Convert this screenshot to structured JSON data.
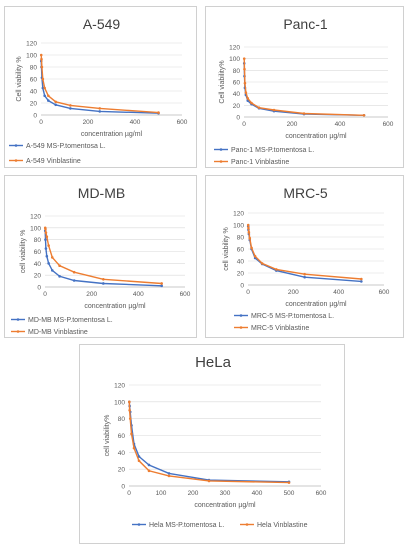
{
  "colors": {
    "ms": "#4472c4",
    "vinblastine": "#ed7d31",
    "grid": "#d9d9d9",
    "axis": "#bfbfbf",
    "text": "#595959"
  },
  "chart_data": [
    {
      "type": "line",
      "title": "A-549",
      "xlabel": "concentration µg/ml",
      "ylabel": "Cell viability %",
      "xlim": [
        0,
        600
      ],
      "xticks": [
        0,
        200,
        400,
        600
      ],
      "ylim": [
        0,
        120
      ],
      "yticks": [
        0,
        20,
        40,
        60,
        80,
        100,
        120
      ],
      "grid": true,
      "legend": "bottom-left",
      "series": [
        {
          "name": "A-549  MS-P.tomentosa L.",
          "color": "#4472c4",
          "x": [
            0.98,
            1.95,
            3.9,
            7.8,
            15.6,
            31.25,
            62.5,
            125,
            250,
            500
          ],
          "y": [
            90,
            80,
            62,
            45,
            32,
            24,
            17,
            11,
            6,
            3
          ]
        },
        {
          "name": "A-549  Vinblastine",
          "color": "#ed7d31",
          "x": [
            0.98,
            1.95,
            3.9,
            7.8,
            15.6,
            31.25,
            62.5,
            125,
            250,
            500
          ],
          "y": [
            100,
            93,
            80,
            60,
            45,
            32,
            22,
            16,
            11,
            4
          ]
        }
      ]
    },
    {
      "type": "line",
      "title": "Panc-1",
      "xlabel": "concentration µg/ml",
      "ylabel": "Cell viability%",
      "xlim": [
        0,
        600
      ],
      "xticks": [
        0,
        200,
        400,
        600
      ],
      "ylim": [
        0,
        120
      ],
      "yticks": [
        0,
        20,
        40,
        60,
        80,
        100,
        120
      ],
      "grid": true,
      "legend": "bottom-left",
      "series": [
        {
          "name": "Panc-1 MS-P.tomentosa L.",
          "color": "#4472c4",
          "x": [
            0.98,
            1.95,
            3.9,
            7.8,
            15.6,
            31.25,
            62.5,
            125,
            250,
            500
          ],
          "y": [
            92,
            70,
            50,
            38,
            28,
            22,
            15,
            10,
            5,
            3
          ]
        },
        {
          "name": "Panc-1 Vinblastine",
          "color": "#ed7d31",
          "x": [
            0.98,
            1.95,
            3.9,
            7.8,
            15.6,
            31.25,
            62.5,
            125,
            250,
            500
          ],
          "y": [
            100,
            82,
            58,
            42,
            32,
            24,
            16,
            12,
            6,
            3
          ]
        }
      ]
    },
    {
      "type": "line",
      "title": "MD-MB",
      "xlabel": "concentration µg/ml",
      "ylabel": "cell viability %",
      "xlim": [
        0,
        600
      ],
      "xticks": [
        0,
        200,
        400,
        600
      ],
      "ylim": [
        0,
        120
      ],
      "yticks": [
        0,
        20,
        40,
        60,
        80,
        100,
        120
      ],
      "grid": true,
      "legend": "bottom-left",
      "series": [
        {
          "name": "MD-MB MS-P.tomentosa L.",
          "color": "#4472c4",
          "x": [
            0.98,
            1.95,
            3.9,
            7.8,
            15.6,
            31.25,
            62.5,
            125,
            250,
            500
          ],
          "y": [
            95,
            80,
            65,
            52,
            40,
            28,
            18,
            11,
            6,
            2
          ]
        },
        {
          "name": "MD-MB Vinblastine",
          "color": "#ed7d31",
          "x": [
            0.98,
            1.95,
            3.9,
            7.8,
            15.6,
            31.25,
            62.5,
            125,
            250,
            500
          ],
          "y": [
            100,
            98,
            92,
            85,
            70,
            50,
            36,
            25,
            13,
            6
          ]
        }
      ]
    },
    {
      "type": "line",
      "title": "MRC-5",
      "xlabel": "concentration µg/ml",
      "ylabel": "cell viability %",
      "xlim": [
        0,
        600
      ],
      "xticks": [
        0,
        200,
        400,
        600
      ],
      "ylim": [
        0,
        120
      ],
      "yticks": [
        0,
        20,
        40,
        60,
        80,
        100,
        120
      ],
      "grid": true,
      "legend": "bottom-left",
      "series": [
        {
          "name": "MRC-5 MS-P.tomentosa L.",
          "color": "#4472c4",
          "x": [
            0.98,
            1.95,
            3.9,
            7.8,
            15.6,
            31.25,
            62.5,
            125,
            250,
            500
          ],
          "y": [
            98,
            92,
            85,
            75,
            60,
            45,
            35,
            24,
            13,
            6
          ]
        },
        {
          "name": "MRC-5 Vinblastine",
          "color": "#ed7d31",
          "x": [
            0.98,
            1.95,
            3.9,
            7.8,
            15.6,
            31.25,
            62.5,
            125,
            250,
            500
          ],
          "y": [
            100,
            95,
            88,
            78,
            62,
            48,
            36,
            26,
            18,
            10
          ]
        }
      ]
    },
    {
      "type": "line",
      "title": "HeLa",
      "xlabel": "concentration µg/ml",
      "ylabel": "cell viability%",
      "xlim": [
        0,
        600
      ],
      "xticks": [
        0,
        100,
        200,
        300,
        400,
        500,
        600
      ],
      "ylim": [
        0,
        120
      ],
      "yticks": [
        0,
        20,
        40,
        60,
        80,
        100,
        120
      ],
      "grid": true,
      "legend": "bottom",
      "series": [
        {
          "name": "Hela MS-P.tomentosa L.",
          "color": "#4472c4",
          "x": [
            0.98,
            1.95,
            3.9,
            7.8,
            15.6,
            31.25,
            62.5,
            125,
            250,
            500
          ],
          "y": [
            100,
            95,
            88,
            72,
            50,
            35,
            25,
            15,
            7,
            5
          ]
        },
        {
          "name": "Hela Vinblastine",
          "color": "#ed7d31",
          "x": [
            0.98,
            1.95,
            3.9,
            7.8,
            15.6,
            31.25,
            62.5,
            125,
            250,
            500
          ],
          "y": [
            100,
            90,
            80,
            62,
            45,
            30,
            18,
            12,
            6,
            4
          ]
        }
      ]
    }
  ]
}
